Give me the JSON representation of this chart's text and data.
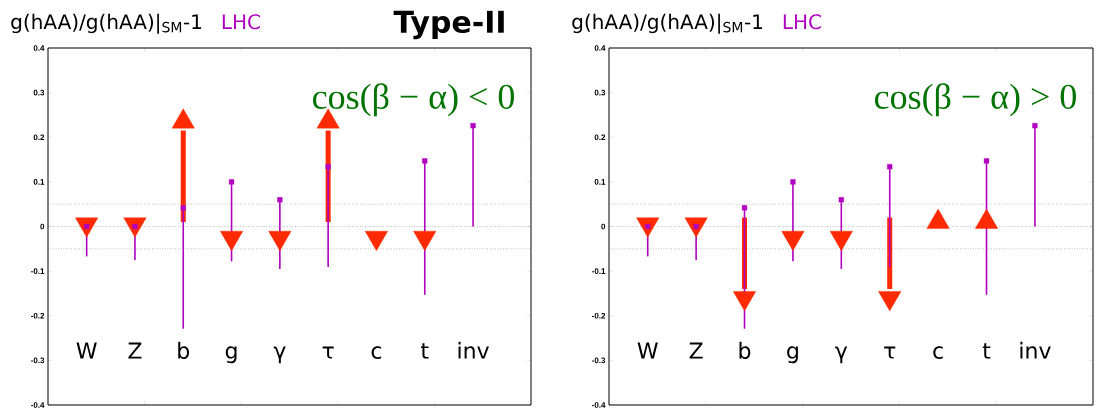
{
  "chart_data": [
    {
      "type": "scatter",
      "title": "g(hAA)/g(hAA)|$_{SM}$-1",
      "categories": [
        "W",
        "Z",
        "b",
        "g",
        "γ",
        "τ",
        "c",
        "t",
        "inv"
      ],
      "ylim": [
        -0.4,
        0.4
      ],
      "yticks": [
        -0.4,
        -0.3,
        -0.2,
        -0.1,
        0,
        0.1,
        0.2,
        0.3,
        0.4
      ],
      "tick_labels": "y",
      "series": [
        {
          "name": "LHC",
          "color": "#b000c0",
          "marker": "square",
          "values": [
            0,
            0,
            0.042,
            0.1,
            0.06,
            0.134,
            null,
            0.147,
            0.226
          ],
          "errors": [
            [
              -0.067,
              0
            ],
            [
              -0.075,
              0
            ],
            [
              -0.229,
              0.042
            ],
            [
              -0.078,
              0.1
            ],
            [
              -0.095,
              0.06
            ],
            [
              -0.091,
              0.134
            ],
            null,
            [
              -0.153,
              0.147
            ],
            [
              0,
              0.226
            ]
          ]
        },
        {
          "color": "#ff2a00",
          "marker": "triangle_down",
          "values": [
            0.005,
            0.005,
            null,
            -0.025,
            -0.025,
            null,
            -0.025,
            -0.025,
            null
          ]
        },
        {
          "type": "bar",
          "color": "#ff2a00",
          "base": [
            null,
            null,
            0.01,
            null,
            null,
            0.01,
            null,
            null,
            null
          ],
          "values": [
            null,
            null,
            0.205,
            null,
            null,
            0.205,
            null,
            null,
            null
          ]
        },
        {
          "color": "#ff2a00",
          "marker": "triangle",
          "values": [
            null,
            null,
            0.235,
            null,
            null,
            0.235,
            null,
            null,
            null
          ]
        }
      ],
      "ref_lines": [
        {
          "axis": "y",
          "value": 0.05,
          "line_style": "dotted",
          "color": "#555555"
        },
        {
          "axis": "y",
          "value": 0,
          "line_style": "dotted",
          "color": "#555555"
        },
        {
          "axis": "y",
          "value": -0.05,
          "line_style": "dotted",
          "color": "#555555"
        }
      ],
      "annotations": [
        "cos(β − α) < 0",
        "Type-II"
      ]
    },
    {
      "type": "scatter",
      "title": "g(hAA)/g(hAA)|$_{SM}$-1",
      "categories": [
        "W",
        "Z",
        "b",
        "g",
        "γ",
        "τ",
        "c",
        "t",
        "inv"
      ],
      "ylim": [
        -0.4,
        0.4
      ],
      "yticks": [
        -0.4,
        -0.3,
        -0.2,
        -0.1,
        0,
        0.1,
        0.2,
        0.3,
        0.4
      ],
      "tick_labels": "y",
      "series": [
        {
          "name": "LHC",
          "color": "#b000c0",
          "marker": "square",
          "values": [
            0,
            0,
            0.042,
            0.1,
            0.06,
            0.134,
            null,
            0.147,
            0.226
          ],
          "errors": [
            [
              -0.067,
              0
            ],
            [
              -0.075,
              0
            ],
            [
              -0.229,
              0.042
            ],
            [
              -0.078,
              0.1
            ],
            [
              -0.095,
              0.06
            ],
            [
              -0.091,
              0.134
            ],
            null,
            [
              -0.153,
              0.147
            ],
            [
              0,
              0.226
            ]
          ]
        },
        {
          "color": "#ff2a00",
          "marker": "triangle_down",
          "values": [
            0.005,
            0.005,
            null,
            -0.025,
            -0.025,
            null,
            null,
            null,
            null
          ]
        },
        {
          "color": "#ff2a00",
          "marker": "triangle",
          "values": [
            null,
            null,
            null,
            null,
            null,
            null,
            0.01,
            0.01,
            null
          ]
        },
        {
          "type": "bar",
          "color": "#ff2a00",
          "base": [
            null,
            null,
            0.02,
            null,
            null,
            0.02,
            null,
            null,
            null
          ],
          "values": [
            null,
            null,
            -0.16,
            null,
            null,
            -0.16,
            null,
            null,
            null
          ]
        },
        {
          "color": "#ff2a00",
          "marker": "triangle_down",
          "values": [
            null,
            null,
            -0.16,
            null,
            null,
            -0.16,
            null,
            null,
            null
          ]
        }
      ],
      "ref_lines": [
        {
          "axis": "y",
          "value": 0.05,
          "line_style": "dotted",
          "color": "#555555"
        },
        {
          "axis": "y",
          "value": 0,
          "line_style": "dotted",
          "color": "#555555"
        },
        {
          "axis": "y",
          "value": -0.05,
          "line_style": "dotted",
          "color": "#555555"
        }
      ],
      "annotations": [
        "cos(β − α) > 0"
      ]
    }
  ]
}
